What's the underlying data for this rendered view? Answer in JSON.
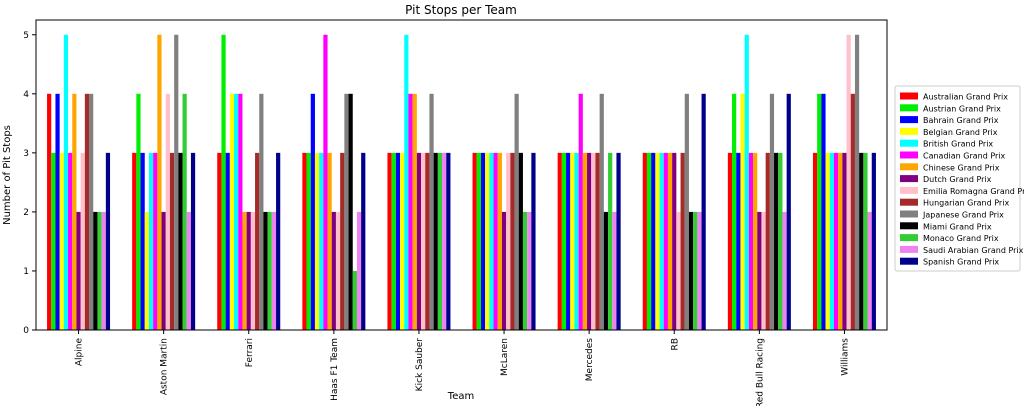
{
  "chart_data": {
    "type": "bar",
    "title": "Pit Stops per Team",
    "xlabel": "Team",
    "ylabel": "Number of Pit Stops",
    "ylim": [
      0,
      5.25
    ],
    "yticks": [
      0,
      1,
      2,
      3,
      4,
      5
    ],
    "grid": false,
    "legend_position": "right",
    "categories": [
      "Alpine",
      "Aston Martin",
      "Ferrari",
      "Haas F1 Team",
      "Kick Sauber",
      "McLaren",
      "Mercedes",
      "RB",
      "Red Bull Racing",
      "Williams"
    ],
    "series": [
      {
        "name": "Australian Grand Prix",
        "color": "#ff0000",
        "values": [
          4,
          3,
          3,
          3,
          3,
          3,
          3,
          3,
          3,
          3
        ]
      },
      {
        "name": "Austrian Grand Prix",
        "color": "#00ee00",
        "values": [
          3,
          4,
          5,
          3,
          3,
          3,
          3,
          3,
          4,
          4
        ]
      },
      {
        "name": "Bahrain Grand Prix",
        "color": "#0000ff",
        "values": [
          4,
          3,
          3,
          4,
          3,
          3,
          3,
          3,
          3,
          4
        ]
      },
      {
        "name": "Belgian Grand Prix",
        "color": "#ffff00",
        "values": [
          3,
          2,
          4,
          3,
          3,
          3,
          3,
          3,
          4,
          3
        ]
      },
      {
        "name": "British Grand Prix",
        "color": "#00ffff",
        "values": [
          5,
          3,
          4,
          3,
          5,
          3,
          3,
          3,
          5,
          3
        ]
      },
      {
        "name": "Canadian Grand Prix",
        "color": "#ff00ff",
        "values": [
          3,
          3,
          4,
          5,
          4,
          3,
          4,
          3,
          3,
          3
        ]
      },
      {
        "name": "Chinese Grand Prix",
        "color": "#ffa500",
        "values": [
          4,
          5,
          2,
          3,
          4,
          3,
          3,
          3,
          3,
          3
        ]
      },
      {
        "name": "Dutch Grand Prix",
        "color": "#800080",
        "values": [
          2,
          2,
          2,
          2,
          3,
          2,
          3,
          3,
          2,
          3
        ]
      },
      {
        "name": "Emilia Romagna Grand Prix",
        "color": "#ffc0cb",
        "values": [
          3,
          4,
          2,
          2,
          3,
          3,
          3,
          2,
          2,
          5
        ]
      },
      {
        "name": "Hungarian Grand Prix",
        "color": "#a52a2a",
        "values": [
          4,
          3,
          3,
          3,
          3,
          3,
          3,
          3,
          3,
          4
        ]
      },
      {
        "name": "Japanese Grand Prix",
        "color": "#808080",
        "values": [
          4,
          5,
          4,
          4,
          4,
          4,
          4,
          4,
          4,
          5
        ]
      },
      {
        "name": "Miami Grand Prix",
        "color": "#000000",
        "values": [
          2,
          3,
          2,
          4,
          3,
          3,
          2,
          2,
          3,
          3
        ]
      },
      {
        "name": "Monaco Grand Prix",
        "color": "#32cd32",
        "values": [
          2,
          4,
          2,
          1,
          3,
          2,
          3,
          2,
          3,
          3
        ]
      },
      {
        "name": "Saudi Arabian Grand Prix",
        "color": "#ee82ee",
        "values": [
          2,
          2,
          2,
          2,
          3,
          2,
          2,
          2,
          2,
          2
        ]
      },
      {
        "name": "Spanish Grand Prix",
        "color": "#00008b",
        "values": [
          3,
          3,
          3,
          3,
          3,
          3,
          3,
          4,
          4,
          3
        ]
      }
    ]
  }
}
